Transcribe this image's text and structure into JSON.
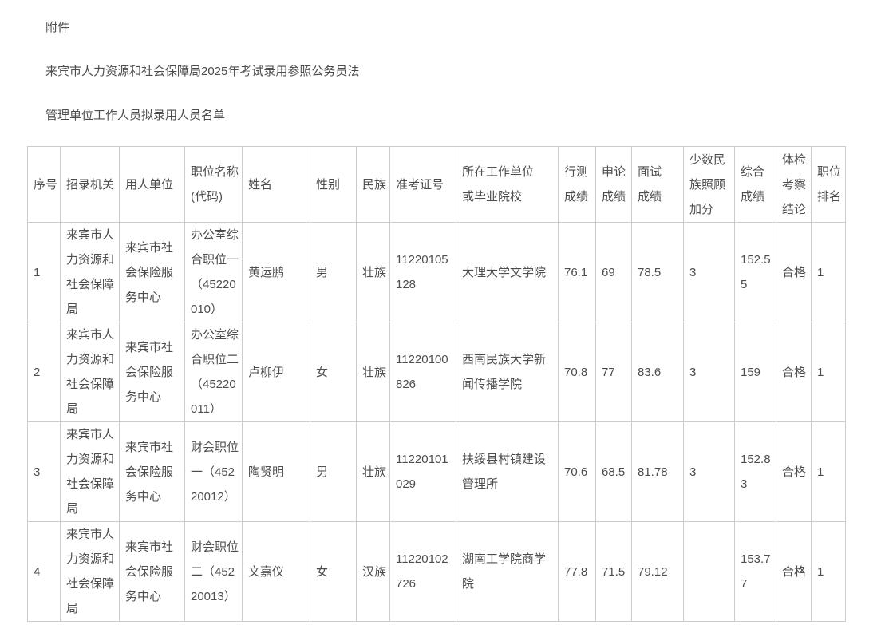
{
  "document": {
    "attachment_label": "附件",
    "title_line_1": "来宾市人力资源和社会保障局2025年考试录用参照公务员法",
    "title_line_2": "管理单位工作人员拟录用人员名单"
  },
  "table": {
    "headers": [
      "序号",
      "招录机关",
      "用人单位",
      "职位名称\n(代码)",
      "姓名",
      "性别",
      "民族",
      "准考证号",
      "所在工作单位\n或毕业院校",
      "行测\n成绩",
      "申论\n成绩",
      "面试\n成绩",
      "少数民\n族照顾\n加分",
      "综合\n成绩",
      "体检\n考察\n结论",
      "职位\n排名"
    ],
    "rows": [
      [
        "1",
        "来宾市人力资源和社会保障局",
        "来宾市社会保险服务中心",
        "办公室综合职位一（45220010）",
        "黄运鹏",
        "男",
        "壮族",
        "11220105128",
        "大理大学文学院",
        "76.1",
        "69",
        "78.5",
        "3",
        "152.55",
        "合格",
        "1"
      ],
      [
        "2",
        "来宾市人力资源和社会保障局",
        "来宾市社会保险服务中心",
        "办公室综合职位二（45220011）",
        "卢柳伊",
        "女",
        "壮族",
        "11220100826",
        "西南民族大学新闻传播学院",
        "70.8",
        "77",
        "83.6",
        "3",
        "159",
        "合格",
        "1"
      ],
      [
        "3",
        "来宾市人力资源和社会保障局",
        "来宾市社会保险服务中心",
        "财会职位一（45220012）",
        "陶贤明",
        "男",
        "壮族",
        "11220101029",
        "扶绥县村镇建设管理所",
        "70.6",
        "68.5",
        "81.78",
        "3",
        "152.83",
        "合格",
        "1"
      ],
      [
        "4",
        "来宾市人力资源和社会保障局",
        "来宾市社会保险服务中心",
        "财会职位二（45220013）",
        "文嘉仪",
        "女",
        "汉族",
        "11220102726",
        "湖南工学院商学院",
        "77.8",
        "71.5",
        "79.12",
        "",
        "153.77",
        "合格",
        "1"
      ]
    ]
  },
  "colors": {
    "text": "#4d4d4d",
    "border": "#cccccc",
    "page_background": "#ffffff"
  }
}
